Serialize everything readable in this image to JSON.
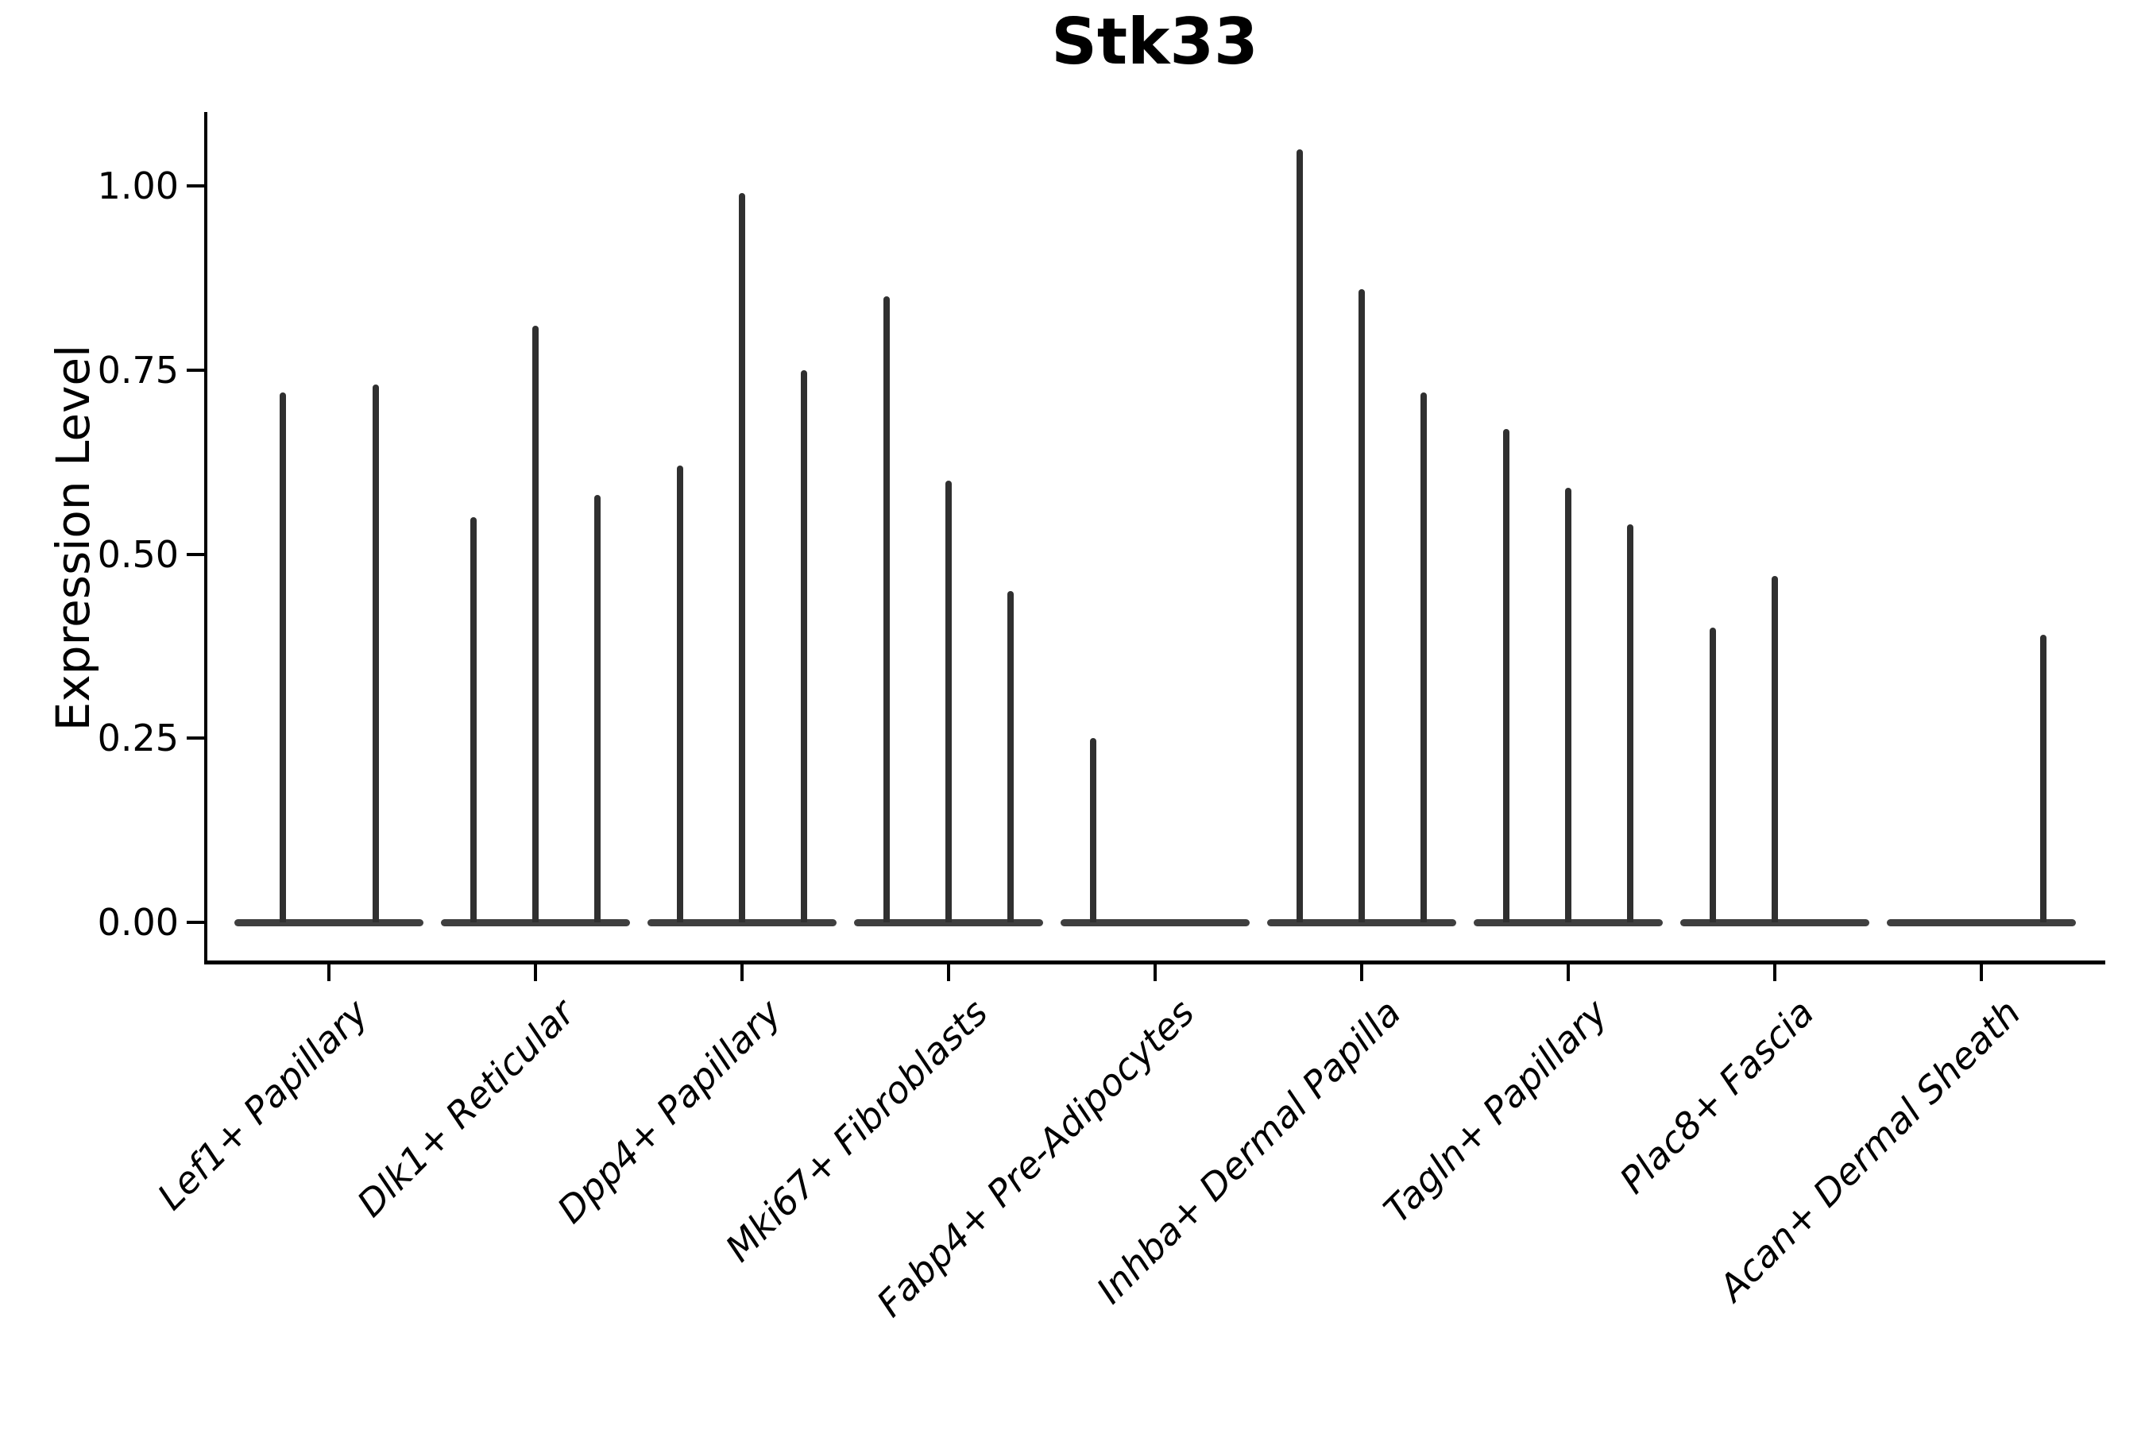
{
  "chart_data": {
    "type": "violin",
    "title": "Stk33",
    "ylabel": "Expression Level",
    "xlabel": "",
    "ylim": [
      -0.05,
      1.1
    ],
    "yticks": [
      0,
      0.25,
      0.5,
      0.75,
      1.0
    ],
    "ytick_labels": [
      "0.00",
      "0.25",
      "0.50",
      "0.75",
      "1.00"
    ],
    "grid": false,
    "legend": "none",
    "style_notes": "thin spike-like violins, up to 3 dodged sub-violins per category, flat density pancake at 0",
    "colors": {
      "violin": "#3f3f3f",
      "spike": "#303030",
      "axis": "#000000",
      "text": "#000000"
    },
    "categories": [
      "Lef1+ Papillary",
      "Dlk1+ Reticular",
      "Dpp4+ Papillary",
      "Mki67+ Fibroblasts",
      "Fabp4+ Pre-Adipocytes",
      "Inhba+ Dermal Papilla",
      "Tagln+ Papillary",
      "Plac8+ Fascia",
      "Acan+ Dermal Sheath"
    ],
    "groups": [
      {
        "category": "Lef1+ Papillary",
        "n_groups": 2,
        "violins": [
          {
            "group_index": 0,
            "max": 0.72
          },
          {
            "group_index": 1,
            "max": 0.73
          }
        ]
      },
      {
        "category": "Dlk1+ Reticular",
        "n_groups": 3,
        "violins": [
          {
            "group_index": 0,
            "max": 0.55
          },
          {
            "group_index": 1,
            "max": 0.81
          },
          {
            "group_index": 2,
            "max": 0.58
          }
        ]
      },
      {
        "category": "Dpp4+ Papillary",
        "n_groups": 3,
        "violins": [
          {
            "group_index": 0,
            "max": 0.62
          },
          {
            "group_index": 1,
            "max": 0.99
          },
          {
            "group_index": 2,
            "max": 0.75
          }
        ]
      },
      {
        "category": "Mki67+ Fibroblasts",
        "n_groups": 3,
        "violins": [
          {
            "group_index": 0,
            "max": 0.85
          },
          {
            "group_index": 1,
            "max": 0.6
          },
          {
            "group_index": 2,
            "max": 0.45
          }
        ]
      },
      {
        "category": "Fabp4+ Pre-Adipocytes",
        "n_groups": 3,
        "violins": [
          {
            "group_index": 0,
            "max": 0.25
          }
        ]
      },
      {
        "category": "Inhba+ Dermal Papilla",
        "n_groups": 3,
        "violins": [
          {
            "group_index": 0,
            "max": 1.05
          },
          {
            "group_index": 1,
            "max": 0.86
          },
          {
            "group_index": 2,
            "max": 0.72
          }
        ]
      },
      {
        "category": "Tagln+ Papillary",
        "n_groups": 3,
        "violins": [
          {
            "group_index": 0,
            "max": 0.67
          },
          {
            "group_index": 1,
            "max": 0.59
          },
          {
            "group_index": 2,
            "max": 0.54
          }
        ]
      },
      {
        "category": "Plac8+ Fascia",
        "n_groups": 3,
        "violins": [
          {
            "group_index": 0,
            "max": 0.4
          },
          {
            "group_index": 1,
            "max": 0.47
          }
        ]
      },
      {
        "category": "Acan+ Dermal Sheath",
        "n_groups": 3,
        "violins": [
          {
            "group_index": 2,
            "max": 0.39
          }
        ]
      }
    ]
  }
}
